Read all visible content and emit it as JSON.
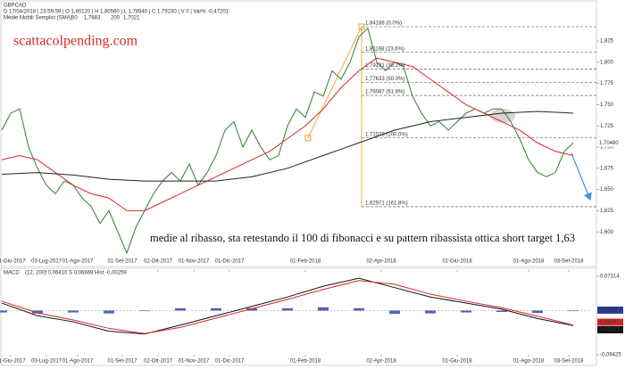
{
  "chart_data": [
    {
      "type": "line",
      "title": "GBPCAD",
      "subtitle": "D 17/04/2018 | 23:59:59 | O 1,80120 | H 1,80560 | L 1,78940 | C 1,79230 | V 0 | Var% -0,47201",
      "legend_title": "Medie Mobili Semplici (SMA)",
      "legend_values": [
        "1,7883",
        "1,7021"
      ],
      "watermark": "scattacolpending.com",
      "annotation": "medie al ribasso, sta retestando il 100 di fibonacci e su pattern ribassista ottica short target 1,63",
      "xlim": [
        0,
        132
      ],
      "xticks": [
        {
          "value": 2,
          "label": "01-Giu-2017"
        },
        {
          "value": 10,
          "label": "03-Lug-2017"
        },
        {
          "value": 17,
          "label": "01-Ago-2017"
        },
        {
          "value": 27,
          "label": "01-Set-2017"
        },
        {
          "value": 35,
          "label": "02-Ott-2017"
        },
        {
          "value": 43,
          "label": "01-Nov-2017"
        },
        {
          "value": 51,
          "label": "01-Dic-2017"
        },
        {
          "value": 68,
          "label": "01-Feb-2018"
        },
        {
          "value": 85,
          "label": "02-Apr-2018"
        },
        {
          "value": 102,
          "label": "01-Giu-2018"
        },
        {
          "value": 118,
          "label": "01-Ago-2018"
        },
        {
          "value": 127,
          "label": "03-Set-2018"
        }
      ],
      "ylim": [
        1.555,
        1.865
      ],
      "yticks": [
        {
          "value": 1.825,
          "label": "1,825"
        },
        {
          "value": 1.8,
          "label": "1,800"
        },
        {
          "value": 1.775,
          "label": "1,775"
        },
        {
          "value": 1.75,
          "label": "1,750"
        },
        {
          "value": 1.725,
          "label": "1,725"
        },
        {
          "value": 1.7,
          "label": "1,700"
        },
        {
          "value": 1.675,
          "label": "1,675"
        },
        {
          "value": 1.65,
          "label": "1,650"
        },
        {
          "value": 1.625,
          "label": "1,625"
        },
        {
          "value": 1.6,
          "label": "1,600"
        }
      ],
      "last_price": {
        "value": 1.7048,
        "label": "1,70480"
      },
      "fibonacci": {
        "color": "#f0a030",
        "x": [
          68.6,
          80.6
        ],
        "levels": [
          {
            "value": 1.84188,
            "label": "1,84188 (0.0%)"
          },
          {
            "value": 1.81168,
            "label": "1,81168 (23.6%)"
          },
          {
            "value": 1.79191,
            "label": "1,79191 (38.2%)"
          },
          {
            "value": 1.77633,
            "label": "1,77633 (50.0%)"
          },
          {
            "value": 1.76087,
            "label": "1,76087 (61.8%)"
          },
          {
            "value": 1.71078,
            "label": "1,71078 (100.0%)"
          },
          {
            "value": 1.62971,
            "label": "1,62971 (161.8%)"
          }
        ]
      },
      "series": [
        {
          "color": "#2e7d32",
          "x": [
            0,
            2,
            4,
            6,
            8,
            10,
            12,
            14,
            16,
            18,
            20,
            22,
            24,
            26,
            28,
            30,
            32,
            34,
            36,
            38,
            40,
            42,
            44,
            46,
            48,
            50,
            52,
            54,
            56,
            58,
            60,
            62,
            64,
            66,
            68,
            70,
            72,
            74,
            76,
            78,
            80,
            82,
            84,
            86,
            88,
            90,
            92,
            94,
            96,
            98,
            100,
            102,
            104,
            106,
            108,
            110,
            112,
            114,
            116,
            118,
            120,
            122,
            124,
            126,
            128
          ],
          "values": [
            1.72,
            1.74,
            1.745,
            1.7,
            1.675,
            1.655,
            1.645,
            1.66,
            1.655,
            1.64,
            1.63,
            1.61,
            1.625,
            1.6,
            1.575,
            1.605,
            1.625,
            1.645,
            1.66,
            1.67,
            1.66,
            1.68,
            1.655,
            1.67,
            1.69,
            1.72,
            1.73,
            1.7,
            1.72,
            1.7,
            1.685,
            1.69,
            1.725,
            1.745,
            1.735,
            1.765,
            1.76,
            1.79,
            1.78,
            1.8,
            1.83,
            1.84,
            1.8,
            1.79,
            1.8,
            1.795,
            1.76,
            1.74,
            1.725,
            1.73,
            1.72,
            1.73,
            1.74,
            1.745,
            1.74,
            1.745,
            1.745,
            1.73,
            1.71,
            1.685,
            1.67,
            1.665,
            1.67,
            1.695,
            1.705
          ]
        },
        {
          "name": "50",
          "color": "#d42a2a",
          "x": [
            0,
            4,
            8,
            12,
            16,
            20,
            24,
            28,
            32,
            36,
            40,
            44,
            48,
            52,
            56,
            60,
            64,
            68,
            72,
            76,
            80,
            84,
            88,
            92,
            96,
            100,
            104,
            108,
            112,
            116,
            120,
            124,
            128
          ],
          "values": [
            1.685,
            1.69,
            1.685,
            1.67,
            1.655,
            1.645,
            1.64,
            1.625,
            1.625,
            1.635,
            1.645,
            1.655,
            1.665,
            1.675,
            1.685,
            1.695,
            1.71,
            1.725,
            1.745,
            1.77,
            1.79,
            1.805,
            1.8,
            1.795,
            1.78,
            1.765,
            1.75,
            1.74,
            1.73,
            1.72,
            1.705,
            1.695,
            1.69
          ]
        },
        {
          "name": "200",
          "color": "#222222",
          "x": [
            0,
            8,
            16,
            24,
            32,
            40,
            48,
            56,
            64,
            72,
            80,
            88,
            96,
            104,
            112,
            120,
            128
          ],
          "values": [
            1.668,
            1.67,
            1.667,
            1.662,
            1.66,
            1.66,
            1.66,
            1.665,
            1.675,
            1.69,
            1.705,
            1.72,
            1.73,
            1.735,
            1.74,
            1.742,
            1.74
          ]
        }
      ]
    },
    {
      "type": "line",
      "title": "MACD",
      "subtitle": "(12, 200)   0,06410   S   0,06669   Hist   -0,00259",
      "xlim": [
        0,
        132
      ],
      "xticks": [
        {
          "value": 2,
          "label": "01-Giu-2017"
        },
        {
          "value": 10,
          "label": "03-Lug-2017"
        },
        {
          "value": 17,
          "label": "01-Ago-2017"
        },
        {
          "value": 27,
          "label": "01-Set-2017"
        },
        {
          "value": 35,
          "label": "02-Ott-2017"
        },
        {
          "value": 43,
          "label": "01-Nov-2017"
        },
        {
          "value": 51,
          "label": "01-Dic-2017"
        },
        {
          "value": 68,
          "label": "01-Feb-2018"
        },
        {
          "value": 85,
          "label": "02-Apr-2018"
        },
        {
          "value": 102,
          "label": "01-Giu-2018"
        },
        {
          "value": 118,
          "label": "01-Ago-2018"
        },
        {
          "value": 127,
          "label": "03-Set-2018"
        }
      ],
      "ylim": [
        -0.09425,
        0.07314
      ],
      "yticks": [
        {
          "value": 0.07314,
          "label": "0,07314"
        },
        {
          "value": -0.09425,
          "label": "-0,09425"
        }
      ],
      "last_labels": [
        {
          "value": 0.00094,
          "label": "0,00094",
          "color": "#2b3a9a"
        },
        {
          "value": -0.03047,
          "label": "-0,03047",
          "color": "#d42a2a"
        },
        {
          "value": -0.03141,
          "label": "-0,03141",
          "color": "#111111"
        }
      ],
      "histogram": {
        "color": "#2b3a9a",
        "x": [
          0,
          8,
          16,
          24,
          32,
          40,
          48,
          56,
          64,
          72,
          80,
          88,
          96,
          104,
          112,
          120,
          128
        ],
        "values": [
          -0.004,
          -0.006,
          -0.004,
          -0.006,
          -0.001,
          0.005,
          0.005,
          0.005,
          0.005,
          0.007,
          0.005,
          -0.007,
          -0.006,
          -0.004,
          -0.003,
          -0.005,
          -0.001
        ]
      },
      "series": [
        {
          "color": "#111111",
          "x": [
            0,
            8,
            16,
            24,
            32,
            40,
            48,
            56,
            64,
            72,
            80,
            88,
            96,
            104,
            112,
            120,
            128
          ],
          "values": [
            0.016,
            -0.011,
            -0.024,
            -0.044,
            -0.05,
            -0.031,
            -0.011,
            0.009,
            0.029,
            0.052,
            0.069,
            0.049,
            0.029,
            0.016,
            0.003,
            -0.017,
            -0.032
          ]
        },
        {
          "color": "#d42a2a",
          "x": [
            0,
            8,
            16,
            24,
            32,
            40,
            48,
            56,
            64,
            72,
            80,
            88,
            96,
            104,
            112,
            120,
            128
          ],
          "values": [
            0.02,
            -0.005,
            -0.02,
            -0.038,
            -0.049,
            -0.036,
            -0.016,
            0.004,
            0.024,
            0.045,
            0.064,
            0.056,
            0.035,
            0.02,
            0.006,
            -0.012,
            -0.031
          ]
        }
      ]
    }
  ]
}
